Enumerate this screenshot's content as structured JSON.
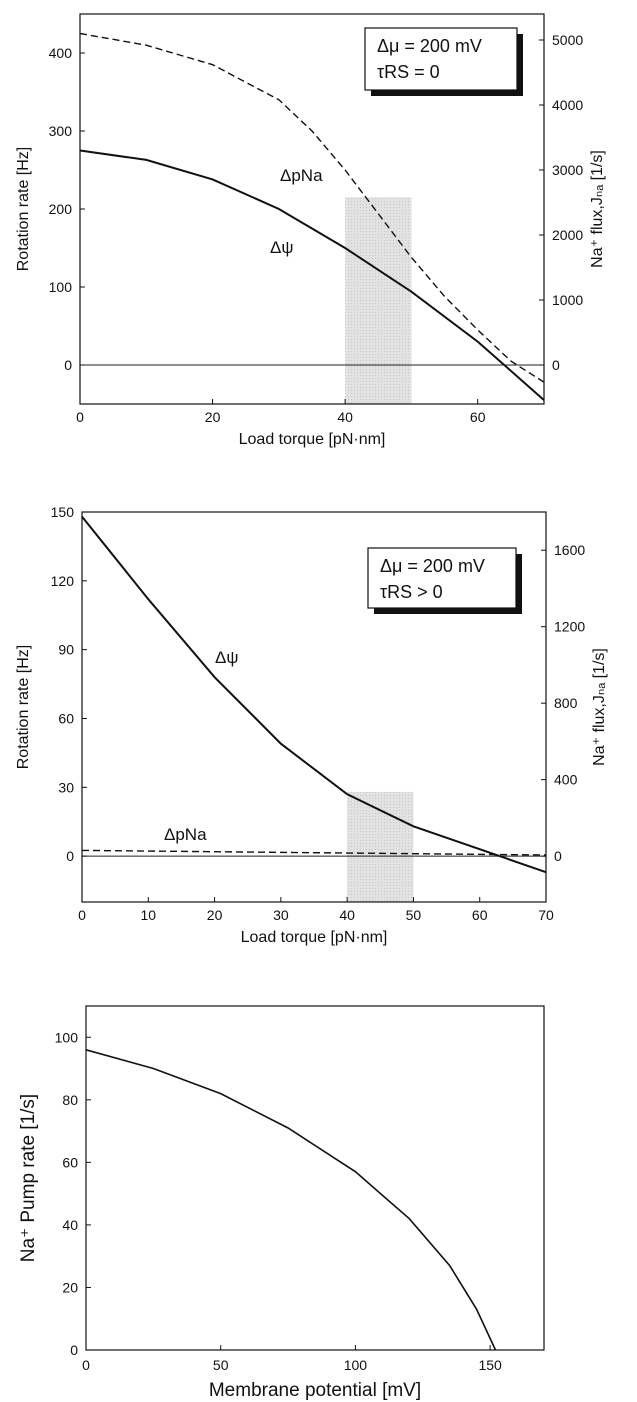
{
  "chart_data": [
    {
      "type": "line",
      "xlabel": "Load torque [pN·nm]",
      "ylabel_left": "Rotation rate [Hz]",
      "ylabel_right": "Na⁺ flux,Jₙₐ [1/s]",
      "xlim": [
        0,
        70
      ],
      "ylim_left": [
        -50,
        450
      ],
      "ylim_right": [
        -600,
        5400
      ],
      "xticks": [
        0,
        20,
        40,
        60
      ],
      "yticks_left": [
        0,
        100,
        200,
        300,
        400
      ],
      "yticks_right": [
        0,
        1000,
        2000,
        3000,
        4000,
        5000
      ],
      "legend": [
        "Δμ = 200 mV",
        "τRS = 0"
      ],
      "legend_placement": "top-right",
      "shaded_region": {
        "x": [
          40,
          50
        ],
        "y_top": 215
      },
      "zero_line": 0,
      "series": [
        {
          "name": "Δψ",
          "style": "solid",
          "x": [
            0,
            10,
            20,
            30,
            40,
            50,
            60,
            70
          ],
          "y": [
            275,
            263,
            238,
            200,
            150,
            94,
            30,
            -45
          ]
        },
        {
          "name": "ΔpNa",
          "style": "dashed",
          "x": [
            0,
            10,
            20,
            30,
            35,
            40,
            50,
            55,
            60,
            65,
            70
          ],
          "y": [
            425,
            410,
            385,
            340,
            300,
            250,
            138,
            88,
            45,
            5,
            -22
          ]
        }
      ]
    },
    {
      "type": "line",
      "xlabel": "Load torque [pN·nm]",
      "ylabel_left": "Rotation rate [Hz]",
      "ylabel_right": "Na⁺ flux,Jₙₐ [1/s]",
      "xlim": [
        0,
        70
      ],
      "ylim_left": [
        -20,
        150
      ],
      "ylim_right": [
        -240,
        1800
      ],
      "xticks": [
        0,
        10,
        20,
        30,
        40,
        50,
        60,
        70
      ],
      "yticks_left": [
        0,
        30,
        60,
        90,
        120,
        150
      ],
      "yticks_right": [
        0,
        400,
        800,
        1200,
        1600
      ],
      "legend": [
        "Δμ = 200 mV",
        "τRS > 0"
      ],
      "legend_placement": "top-right",
      "shaded_region": {
        "x": [
          40,
          50
        ],
        "y_top": 28
      },
      "zero_line": 0,
      "series": [
        {
          "name": "Δψ",
          "style": "solid",
          "x": [
            0,
            10,
            20,
            30,
            40,
            50,
            60,
            70
          ],
          "y": [
            148,
            112,
            78,
            49,
            27,
            13,
            3,
            -7
          ]
        },
        {
          "name": "ΔpNa",
          "style": "dashed",
          "x": [
            0,
            70
          ],
          "y": [
            2.5,
            0.5
          ]
        }
      ]
    },
    {
      "type": "line",
      "xlabel": "Membrane potential [mV]",
      "ylabel": "Na⁺ Pump rate [1/s]",
      "xlim": [
        0,
        170
      ],
      "ylim": [
        0,
        110
      ],
      "xticks": [
        0,
        50,
        100,
        150
      ],
      "yticks": [
        0,
        20,
        40,
        60,
        80,
        100
      ],
      "series": [
        {
          "x": [
            0,
            25,
            50,
            75,
            100,
            120,
            135,
            145,
            152
          ],
          "y": [
            96,
            90,
            82,
            71,
            57,
            42,
            27,
            13,
            0
          ]
        }
      ]
    }
  ]
}
